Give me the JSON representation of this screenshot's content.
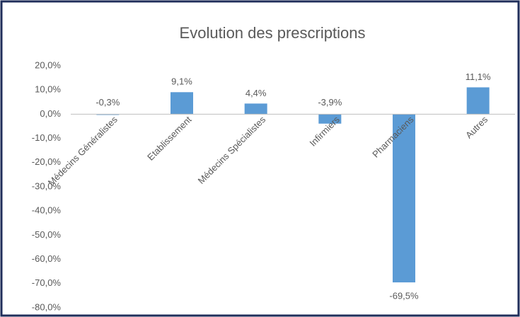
{
  "chart_data": {
    "type": "bar",
    "title": "Evolution des prescriptions",
    "categories": [
      "Médecins Généralistes",
      "Etablissement",
      "Médecins Spécialistes",
      "Infirmiers",
      "Pharmaciens",
      "Autres"
    ],
    "values": [
      -0.3,
      9.1,
      4.4,
      -3.9,
      -69.5,
      11.1
    ],
    "value_labels": [
      "-0,3%",
      "9,1%",
      "4,4%",
      "-3,9%",
      "-69,5%",
      "11,1%"
    ],
    "color": "#5b9bd5",
    "ylim": [
      -80,
      20
    ],
    "yticks": [
      {
        "value": 20,
        "label": "20,0%"
      },
      {
        "value": 10,
        "label": "10,0%"
      },
      {
        "value": 0,
        "label": "0,0%"
      },
      {
        "value": -10,
        "label": "-10,0%"
      },
      {
        "value": -20,
        "label": "-20,0%"
      },
      {
        "value": -30,
        "label": "-30,0%"
      },
      {
        "value": -40,
        "label": "-40,0%"
      },
      {
        "value": -50,
        "label": "-50,0%"
      },
      {
        "value": -60,
        "label": "-60,0%"
      },
      {
        "value": -70,
        "label": "-70,0%"
      },
      {
        "value": -80,
        "label": "-80,0%"
      }
    ],
    "grid": false
  }
}
